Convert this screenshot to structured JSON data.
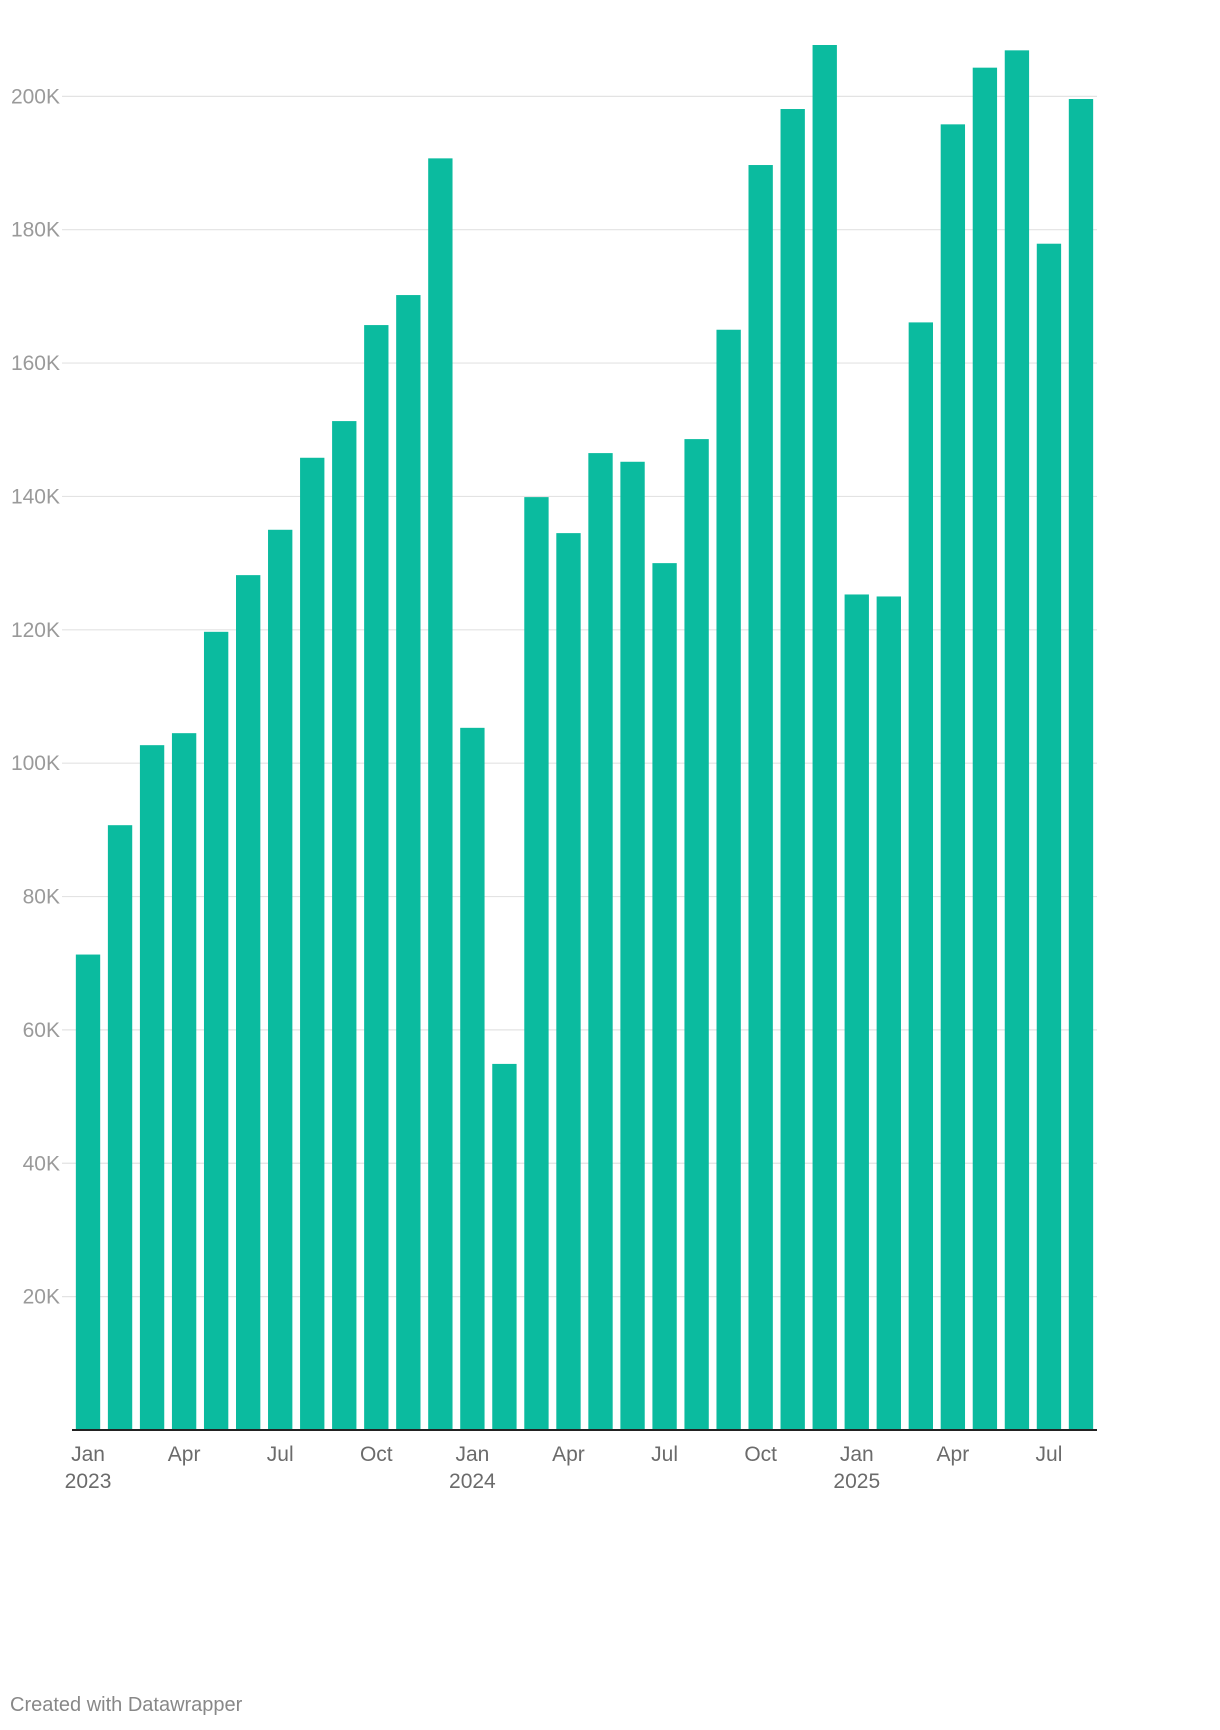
{
  "chart_data": {
    "type": "bar",
    "title": "",
    "xlabel": "",
    "ylabel": "",
    "ylim": [
      0,
      208000
    ],
    "grid": true,
    "legend": "none",
    "y_ticks": [
      20000,
      40000,
      60000,
      80000,
      100000,
      120000,
      140000,
      160000,
      180000,
      200000
    ],
    "y_tick_labels": [
      "20K",
      "40K",
      "60K",
      "80K",
      "100K",
      "120K",
      "140K",
      "160K",
      "180K",
      "200K"
    ],
    "x_tick_labels": [
      {
        "category": "2023-01",
        "month": "Jan",
        "year": "2023"
      },
      {
        "category": "2023-04",
        "month": "Apr",
        "year": ""
      },
      {
        "category": "2023-07",
        "month": "Jul",
        "year": ""
      },
      {
        "category": "2023-10",
        "month": "Oct",
        "year": ""
      },
      {
        "category": "2024-01",
        "month": "Jan",
        "year": "2024"
      },
      {
        "category": "2024-04",
        "month": "Apr",
        "year": ""
      },
      {
        "category": "2024-07",
        "month": "Jul",
        "year": ""
      },
      {
        "category": "2024-10",
        "month": "Oct",
        "year": ""
      },
      {
        "category": "2025-01",
        "month": "Jan",
        "year": "2025"
      },
      {
        "category": "2025-04",
        "month": "Apr",
        "year": ""
      },
      {
        "category": "2025-07",
        "month": "Jul",
        "year": ""
      }
    ],
    "categories": [
      "2023-01",
      "2023-02",
      "2023-03",
      "2023-04",
      "2023-05",
      "2023-06",
      "2023-07",
      "2023-08",
      "2023-09",
      "2023-10",
      "2023-11",
      "2023-12",
      "2024-01",
      "2024-02",
      "2024-03",
      "2024-04",
      "2024-05",
      "2024-06",
      "2024-07",
      "2024-08",
      "2024-09",
      "2024-10",
      "2024-11",
      "2024-12",
      "2025-01",
      "2025-02",
      "2025-03",
      "2025-04",
      "2025-05",
      "2025-06",
      "2025-07",
      "2025-08"
    ],
    "values": [
      71300,
      90700,
      102700,
      104500,
      119700,
      128200,
      135000,
      145800,
      151300,
      165700,
      170200,
      190700,
      105300,
      54900,
      139900,
      134500,
      146500,
      145200,
      130000,
      148600,
      165000,
      189700,
      198100,
      207700,
      125300,
      125000,
      166100,
      195800,
      204300,
      206900,
      177900,
      199600
    ]
  },
  "colors": {
    "bar": "#0bbb9f",
    "grid": "#e3e3e3",
    "axis": "#222222",
    "tick_text": "#9a9a9a",
    "x_label_text": "#6b6b6b",
    "footer_text": "#888888"
  },
  "footer": {
    "credit": "Created with Datawrapper"
  }
}
